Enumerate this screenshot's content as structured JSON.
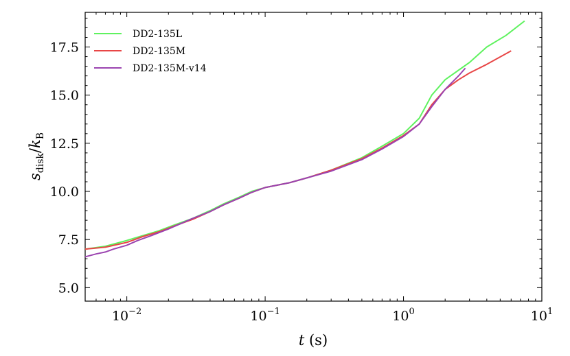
{
  "chart_data": {
    "type": "line",
    "title": "",
    "xlabel": "t (s)",
    "xlabel_var": "t",
    "xlabel_unit": "(s)",
    "ylabel": "s_disk/k_B",
    "xscale": "log",
    "xlim": [
      0.005,
      10
    ],
    "ylim": [
      4.3,
      19.3
    ],
    "yticks": [
      "5.0",
      "7.5",
      "10.0",
      "12.5",
      "15.0",
      "17.5"
    ],
    "xticks": [
      {
        "base": "10",
        "exp": "−2"
      },
      {
        "base": "10",
        "exp": "−1"
      },
      {
        "base": "10",
        "exp": "0"
      },
      {
        "base": "10",
        "exp": "1"
      }
    ],
    "grid": false,
    "legend": "top-left",
    "series": [
      {
        "name": "DD2-135L",
        "color": "#5ff25f",
        "points": [
          [
            0.005,
            7.0
          ],
          [
            0.007,
            7.15
          ],
          [
            0.01,
            7.45
          ],
          [
            0.013,
            7.7
          ],
          [
            0.017,
            7.95
          ],
          [
            0.022,
            8.25
          ],
          [
            0.03,
            8.6
          ],
          [
            0.04,
            9.0
          ],
          [
            0.05,
            9.35
          ],
          [
            0.065,
            9.7
          ],
          [
            0.08,
            10.0
          ],
          [
            0.1,
            10.2
          ],
          [
            0.15,
            10.45
          ],
          [
            0.2,
            10.7
          ],
          [
            0.3,
            11.1
          ],
          [
            0.5,
            11.75
          ],
          [
            0.7,
            12.35
          ],
          [
            1.0,
            13.0
          ],
          [
            1.3,
            13.8
          ],
          [
            1.6,
            15.0
          ],
          [
            2.0,
            15.8
          ],
          [
            3.0,
            16.7
          ],
          [
            4.0,
            17.5
          ],
          [
            5.5,
            18.1
          ],
          [
            7.5,
            18.85
          ]
        ]
      },
      {
        "name": "DD2-135M",
        "color": "#e84646",
        "points": [
          [
            0.005,
            7.0
          ],
          [
            0.007,
            7.1
          ],
          [
            0.01,
            7.35
          ],
          [
            0.013,
            7.65
          ],
          [
            0.017,
            7.9
          ],
          [
            0.022,
            8.2
          ],
          [
            0.03,
            8.55
          ],
          [
            0.04,
            8.95
          ],
          [
            0.05,
            9.3
          ],
          [
            0.065,
            9.65
          ],
          [
            0.08,
            9.95
          ],
          [
            0.1,
            10.2
          ],
          [
            0.15,
            10.45
          ],
          [
            0.2,
            10.7
          ],
          [
            0.3,
            11.1
          ],
          [
            0.5,
            11.7
          ],
          [
            0.7,
            12.25
          ],
          [
            1.0,
            12.9
          ],
          [
            1.3,
            13.5
          ],
          [
            1.6,
            14.5
          ],
          [
            2.0,
            15.3
          ],
          [
            2.5,
            15.8
          ],
          [
            3.0,
            16.15
          ],
          [
            4.0,
            16.6
          ],
          [
            6.0,
            17.3
          ]
        ]
      },
      {
        "name": "DD2-135M-v14",
        "color": "#9b43b0",
        "points": [
          [
            0.005,
            6.6
          ],
          [
            0.006,
            6.75
          ],
          [
            0.007,
            6.85
          ],
          [
            0.008,
            7.0
          ],
          [
            0.01,
            7.2
          ],
          [
            0.012,
            7.45
          ],
          [
            0.015,
            7.7
          ],
          [
            0.02,
            8.05
          ],
          [
            0.025,
            8.35
          ],
          [
            0.03,
            8.6
          ],
          [
            0.04,
            8.95
          ],
          [
            0.05,
            9.3
          ],
          [
            0.065,
            9.65
          ],
          [
            0.08,
            9.95
          ],
          [
            0.1,
            10.2
          ],
          [
            0.15,
            10.45
          ],
          [
            0.2,
            10.7
          ],
          [
            0.3,
            11.05
          ],
          [
            0.5,
            11.65
          ],
          [
            0.7,
            12.2
          ],
          [
            1.0,
            12.85
          ],
          [
            1.3,
            13.5
          ],
          [
            1.6,
            14.4
          ],
          [
            2.0,
            15.3
          ],
          [
            2.5,
            16.0
          ],
          [
            2.8,
            16.4
          ]
        ]
      }
    ]
  }
}
